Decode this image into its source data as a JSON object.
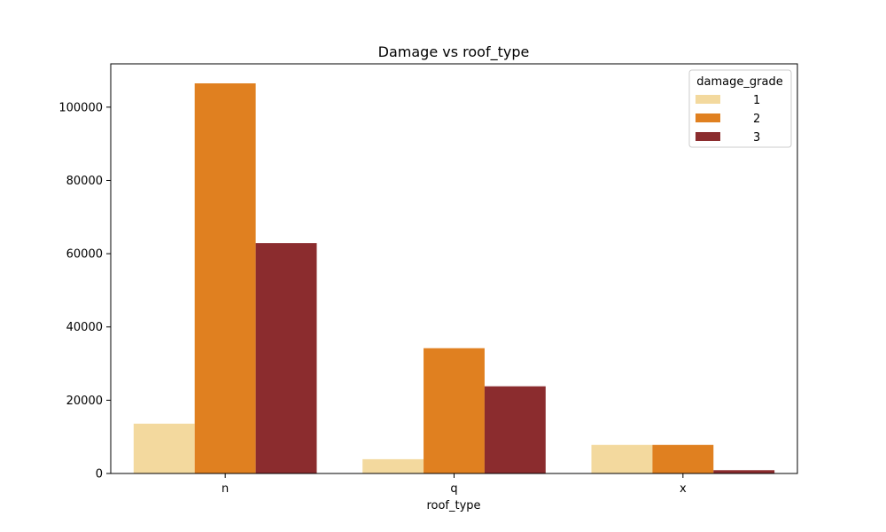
{
  "chart_data": {
    "type": "bar",
    "title": "Damage vs roof_type",
    "xlabel": "roof_type",
    "ylabel": "",
    "categories": [
      "n",
      "q",
      "x"
    ],
    "series": [
      {
        "name": "1",
        "color": "#f3d99e",
        "values": [
          13600,
          3900,
          7800
        ]
      },
      {
        "name": "2",
        "color": "#e08020",
        "values": [
          106500,
          34200,
          7800
        ]
      },
      {
        "name": "3",
        "color": "#8b2c2e",
        "values": [
          62900,
          23800,
          900
        ]
      }
    ],
    "ylim": [
      0,
      111825
    ],
    "yticks": [
      0,
      20000,
      40000,
      60000,
      80000,
      100000
    ],
    "ytick_labels": [
      "0",
      "20000",
      "40000",
      "60000",
      "80000",
      "100000"
    ],
    "grid": false,
    "legend": {
      "title": "damage_grade",
      "position": "top-right"
    }
  }
}
